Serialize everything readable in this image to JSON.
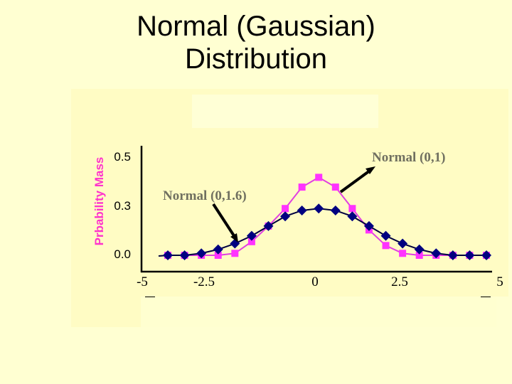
{
  "title": {
    "line1": "Normal (Gaussian)",
    "line2": "Distribution"
  },
  "colors": {
    "background": "#FFFFD2",
    "normal_0_1": "#FF33FF",
    "normal_0_1_line": "#E040E0",
    "normal_0_16": "#000080",
    "normal_0_16_line": "#000040",
    "ylabel": "#FF33CC",
    "annotation": "#707060"
  },
  "axes": {
    "ylabel": "Prbability Mass",
    "yticks": [
      "0.5",
      "0.3",
      "0.0"
    ],
    "xticks": [
      "-5",
      "-2.5",
      "0",
      "2.5",
      "5"
    ]
  },
  "annotations": {
    "normal_0_1": "Normal (0,1)",
    "normal_0_16": "Normal (0,1.6)"
  },
  "chart_data": {
    "type": "line",
    "title": "Normal (Gaussian) Distribution",
    "xlabel": "",
    "ylabel": "Prbability Mass",
    "xlim": [
      -5,
      5
    ],
    "ylim": [
      0,
      0.5
    ],
    "ytick_labels": [
      "0.0",
      "0.3",
      "0.5"
    ],
    "xtick_labels": [
      "-5",
      "-2.5",
      "0",
      "2.5",
      "5"
    ],
    "grid": false,
    "legend": "inline annotations with arrows",
    "x": [
      -4.5,
      -4.0,
      -3.5,
      -3.0,
      -2.5,
      -2.0,
      -1.5,
      -1.0,
      -0.5,
      0.0,
      0.5,
      1.0,
      1.5,
      2.0,
      2.5,
      3.0,
      3.5,
      4.0,
      4.5,
      5.0
    ],
    "series": [
      {
        "name": "Normal (0,1)",
        "marker": "square",
        "color": "#FF33FF",
        "values": [
          0.0,
          0.0,
          0.0,
          0.0,
          0.01,
          0.07,
          0.15,
          0.24,
          0.35,
          0.4,
          0.35,
          0.24,
          0.13,
          0.05,
          0.01,
          0.0,
          0.0,
          0.0,
          0.0,
          0.0
        ]
      },
      {
        "name": "Normal (0,1.6)",
        "marker": "diamond",
        "color": "#000080",
        "values": [
          0.0,
          0.0,
          0.01,
          0.03,
          0.06,
          0.1,
          0.15,
          0.2,
          0.23,
          0.24,
          0.23,
          0.2,
          0.15,
          0.1,
          0.06,
          0.03,
          0.01,
          0.0,
          0.0,
          0.0
        ]
      }
    ]
  }
}
